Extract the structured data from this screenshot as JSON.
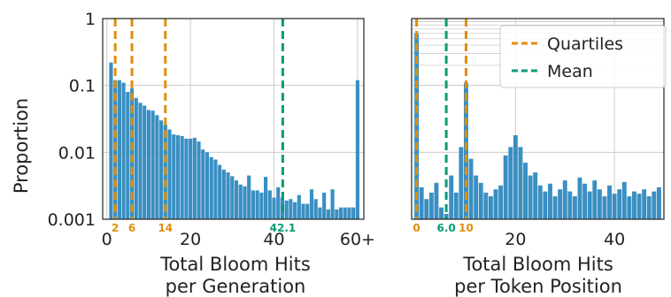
{
  "chart_data": [
    {
      "type": "bar",
      "ylabel": "Proportion",
      "xlabel_lines": [
        "Total Bloom Hits",
        "per Generation"
      ],
      "y_scale": "log",
      "ylim": [
        0.001,
        1
      ],
      "y_ticks": [
        {
          "value": 1,
          "label": "1"
        },
        {
          "value": 0.1,
          "label": "0.1"
        },
        {
          "value": 0.01,
          "label": "0.01"
        },
        {
          "value": 0.001,
          "label": "0.001"
        }
      ],
      "xlim": [
        -1,
        61.5
      ],
      "x_ticks": [
        {
          "value": 0,
          "label": "0"
        },
        {
          "value": 20,
          "label": "20"
        },
        {
          "value": 40,
          "label": "40"
        },
        {
          "value": 60,
          "label": "60+"
        }
      ],
      "x": [
        1,
        2,
        3,
        4,
        5,
        6,
        7,
        8,
        9,
        10,
        11,
        12,
        13,
        14,
        15,
        16,
        17,
        18,
        19,
        20,
        21,
        22,
        23,
        24,
        25,
        26,
        27,
        28,
        29,
        30,
        31,
        32,
        33,
        34,
        35,
        36,
        37,
        38,
        39,
        40,
        41,
        42,
        43,
        44,
        45,
        46,
        47,
        48,
        49,
        50,
        51,
        52,
        53,
        54,
        55,
        56,
        57,
        58,
        59,
        60
      ],
      "values": [
        0.22,
        0.12,
        0.12,
        0.11,
        0.08,
        0.09,
        0.065,
        0.055,
        0.05,
        0.043,
        0.042,
        0.036,
        0.03,
        0.026,
        0.022,
        0.0185,
        0.018,
        0.0175,
        0.016,
        0.016,
        0.0165,
        0.0145,
        0.011,
        0.01,
        0.0085,
        0.0078,
        0.0065,
        0.0055,
        0.005,
        0.0044,
        0.0038,
        0.0033,
        0.0031,
        0.0045,
        0.0027,
        0.0027,
        0.0025,
        0.0043,
        0.0027,
        0.0021,
        0.003,
        0.0021,
        0.0019,
        0.002,
        0.0018,
        0.0023,
        0.0017,
        0.0017,
        0.0028,
        0.002,
        0.0015,
        0.0025,
        0.0014,
        0.0028,
        0.0014,
        0.0015,
        0.0015,
        0.0015,
        0.0015,
        0.12
      ],
      "vlines": [
        {
          "kind": "quartile",
          "x": 2,
          "label": "2"
        },
        {
          "kind": "quartile",
          "x": 6,
          "label": "6"
        },
        {
          "kind": "quartile",
          "x": 14,
          "label": "14"
        },
        {
          "kind": "mean",
          "x": 42.1,
          "label": "42.1"
        }
      ]
    },
    {
      "type": "bar",
      "xlabel_lines": [
        "Total Bloom Hits",
        "per Token Position"
      ],
      "y_scale": "log",
      "ylim": [
        0.001,
        1
      ],
      "xlim": [
        -1,
        50
      ],
      "x_ticks": [
        {
          "value": 20,
          "label": "20"
        },
        {
          "value": 40,
          "label": "40"
        }
      ],
      "x": [
        0,
        1,
        2,
        3,
        4,
        5,
        6,
        7,
        8,
        9,
        10,
        11,
        12,
        13,
        14,
        15,
        16,
        17,
        18,
        19,
        20,
        21,
        22,
        23,
        24,
        25,
        26,
        27,
        28,
        29,
        30,
        31,
        32,
        33,
        34,
        35,
        36,
        37,
        38,
        39,
        40,
        41,
        42,
        43,
        44,
        45,
        46,
        47,
        48,
        49
      ],
      "values": [
        0.6,
        0.003,
        0.002,
        0.0025,
        0.0035,
        0.0015,
        0.0012,
        0.0045,
        0.0025,
        0.012,
        0.11,
        0.008,
        0.0045,
        0.0035,
        0.0025,
        0.0022,
        0.0028,
        0.0032,
        0.009,
        0.012,
        0.018,
        0.012,
        0.007,
        0.0045,
        0.005,
        0.0032,
        0.0026,
        0.0034,
        0.0022,
        0.0028,
        0.0038,
        0.0026,
        0.0022,
        0.0042,
        0.0034,
        0.0026,
        0.0038,
        0.0028,
        0.0022,
        0.0032,
        0.0024,
        0.0028,
        0.0036,
        0.0022,
        0.0026,
        0.0024,
        0.0028,
        0.0022,
        0.0026,
        0.003
      ],
      "vlines": [
        {
          "kind": "quartile",
          "x": 0,
          "label": "0"
        },
        {
          "kind": "mean",
          "x": 6.0,
          "label": "6.0"
        },
        {
          "kind": "quartile",
          "x": 10,
          "label": "10"
        }
      ],
      "legend": {
        "position": "top-right",
        "entries": [
          {
            "kind": "quartile",
            "label": "Quartiles"
          },
          {
            "kind": "mean",
            "label": "Mean"
          }
        ]
      }
    }
  ],
  "colors": {
    "bar": "#3a8fc2",
    "quartile": "#e08e0b",
    "mean": "#0b9b76",
    "grid": "#cccccc",
    "axis": "#222222",
    "text": "#222222"
  }
}
